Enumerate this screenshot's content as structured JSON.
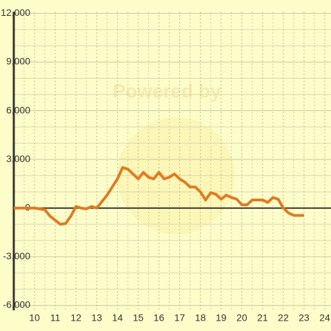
{
  "chart_data": {
    "type": "line",
    "watermark": "Powered by",
    "x": [
      9,
      9.5,
      10,
      10.5,
      10.75,
      11,
      11.25,
      11.5,
      11.75,
      12,
      12.25,
      12.5,
      12.75,
      13,
      13.25,
      13.5,
      13.75,
      14,
      14.25,
      14.5,
      14.75,
      15,
      15.25,
      15.5,
      15.75,
      16,
      16.25,
      16.5,
      16.75,
      17,
      17.25,
      17.5,
      17.75,
      18,
      18.25,
      18.5,
      18.75,
      19,
      19.25,
      19.5,
      19.75,
      20,
      20.25,
      20.5,
      20.75,
      21,
      21.25,
      21.5,
      21.75,
      22,
      22.25,
      22.5,
      22.75,
      23
    ],
    "series": [
      {
        "color": "#e07b22",
        "values": [
          0,
          0,
          0,
          -100,
          -500,
          -750,
          -1000,
          -950,
          -500,
          100,
          0,
          -50,
          100,
          0,
          400,
          800,
          1300,
          1800,
          2500,
          2400,
          2100,
          1800,
          2200,
          1900,
          1800,
          2200,
          1800,
          1900,
          2100,
          1800,
          1600,
          1300,
          1300,
          1000,
          500,
          950,
          850,
          550,
          800,
          650,
          550,
          200,
          200,
          500,
          500,
          500,
          350,
          650,
          550,
          0,
          -300,
          -450,
          -450,
          -450
        ]
      }
    ],
    "xlim": [
      9,
      24.3
    ],
    "xticks": [
      10,
      11,
      12,
      13,
      14,
      15,
      16,
      17,
      18,
      19,
      20,
      21,
      22,
      23,
      24
    ],
    "xminor_ticks": [
      9.5,
      10.5,
      11.5,
      12.5,
      13.5,
      14.5,
      15.5,
      16.5,
      17.5,
      18.5,
      19.5,
      20.5,
      21.5,
      22.5,
      23.5
    ],
    "ylim": [
      -6300,
      12100
    ],
    "yticks": [
      {
        "value": -6000,
        "label": "-6,000"
      },
      {
        "value": -3000,
        "label": "-3,000"
      },
      0,
      {
        "value": 3000,
        "label": "3,000"
      },
      {
        "value": 6000,
        "label": "6,000"
      },
      {
        "value": 9000,
        "label": "9,000"
      },
      {
        "value": 12000,
        "label": "12,000"
      }
    ],
    "yminor_ticks": [
      -5000,
      -4000,
      -2000,
      -1000,
      1000,
      2000,
      4000,
      5000,
      7000,
      8000,
      10000,
      11000
    ],
    "grid": true
  }
}
